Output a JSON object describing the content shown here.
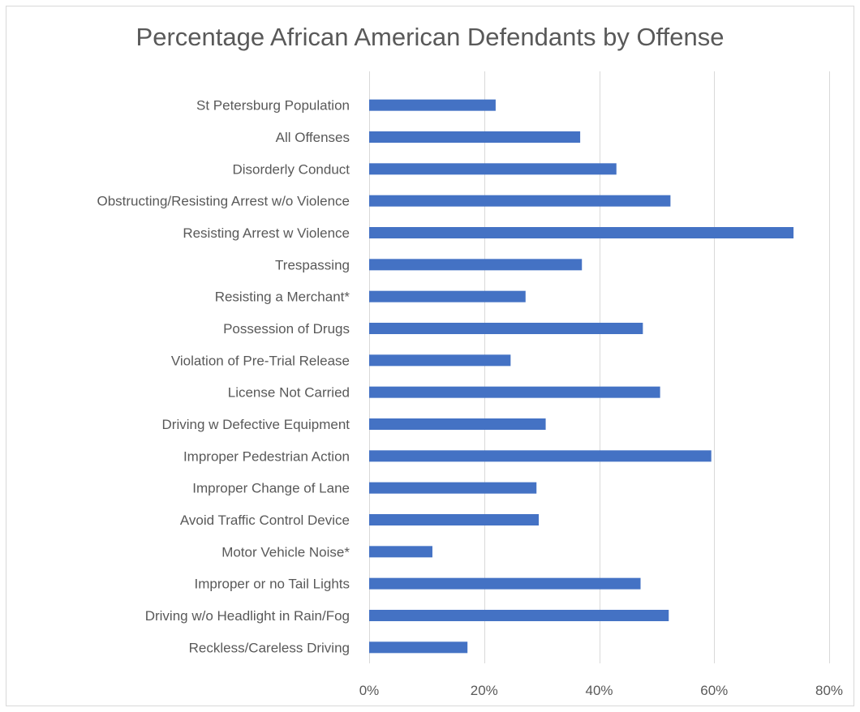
{
  "chart_data": {
    "type": "bar",
    "orientation": "horizontal",
    "title": "Percentage African American Defendants by Offense",
    "categories": [
      "St Petersburg Population",
      "All Offenses",
      "Disorderly Conduct",
      "Obstructing/Resisting Arrest w/o Violence",
      "Resisting Arrest w Violence",
      "Trespassing",
      "Resisting a Merchant*",
      "Possession of Drugs",
      "Violation of Pre-Trial Release",
      "License Not Carried",
      "Driving w Defective Equipment",
      "Improper Pedestrian Action",
      "Improper Change of Lane",
      "Avoid Traffic Control Device",
      "Motor Vehicle Noise*",
      "Improper or no Tail Lights",
      "Driving w/o Headlight in Rain/Fog",
      "Reckless/Careless Driving"
    ],
    "values": [
      0.22,
      0.367,
      0.43,
      0.524,
      0.738,
      0.37,
      0.272,
      0.476,
      0.246,
      0.506,
      0.307,
      0.595,
      0.291,
      0.295,
      0.11,
      0.472,
      0.521,
      0.171
    ],
    "xlim": [
      0,
      0.8
    ],
    "x_ticks": [
      0,
      0.2,
      0.4,
      0.6,
      0.8
    ],
    "x_tick_labels": [
      "0%",
      "20%",
      "40%",
      "60%",
      "80%"
    ],
    "xlabel": "",
    "ylabel": "",
    "grid": "vertical",
    "legend": "none",
    "bar_color": "#4472c4",
    "grid_color": "#d9d9d9"
  }
}
